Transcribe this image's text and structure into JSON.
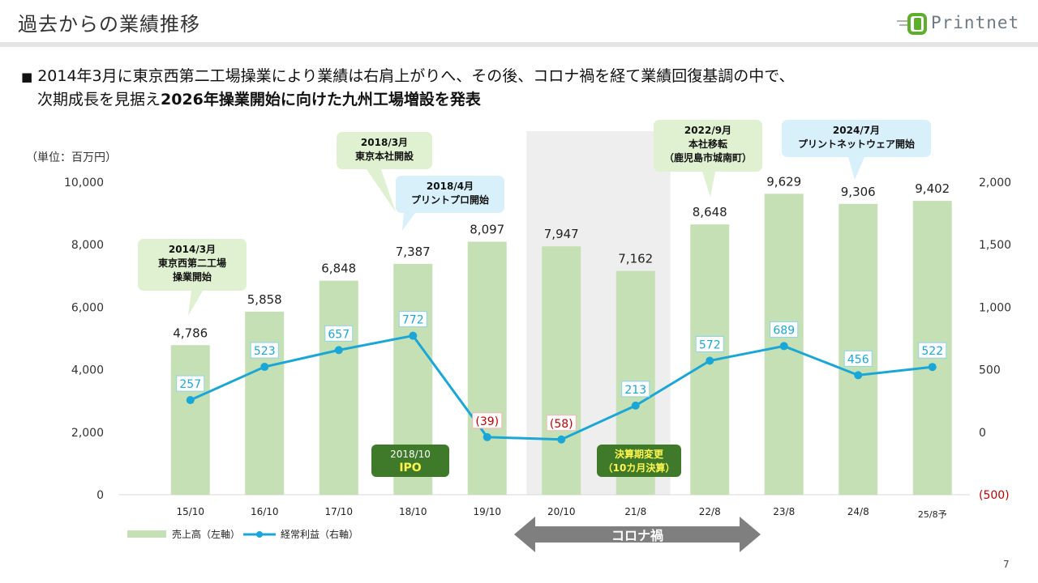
{
  "header": {
    "title": "過去からの業績推移",
    "logo_text": "Printnet",
    "logo_initial": "P"
  },
  "headline": {
    "bullet": "■",
    "line1": "2014年3月に東京西第二工場操業により業績は右肩上がりへ、その後、コロナ禍を経て業績回復基調の中で、",
    "line2_plain": "次期成長を見据え",
    "line2_bold": "2026年操業開始に向けた九州工場増設を発表"
  },
  "unit_label": "（単位：百万円）",
  "callouts": [
    {
      "lines": [
        "2014/3月",
        "東京西第二工場",
        "操業開始"
      ],
      "color": "green"
    },
    {
      "lines": [
        "2018/3月",
        "東京本社開設"
      ],
      "color": "green"
    },
    {
      "lines": [
        "2018/4月",
        "プリントプロ開始"
      ],
      "color": "blue"
    },
    {
      "lines": [
        "2022/9月",
        "本社移転",
        "（鹿児島市城南町）"
      ],
      "color": "green"
    },
    {
      "lines": [
        "2024/7月",
        "プリントネットウェア開始"
      ],
      "color": "blue"
    }
  ],
  "badges": {
    "ipo_date": "2018/10",
    "ipo_label": "IPO",
    "fy_change_line1": "決算期変更",
    "fy_change_line2": "（10カ月決算）"
  },
  "covid_label": "コロナ禍",
  "page_number": "7",
  "colors": {
    "bar": "#c5e0b4",
    "line": "#1aa7d8",
    "negative": "#c00000",
    "callout_green": "#dff1d0",
    "callout_blue": "#d8f0fa",
    "badge_green": "#3f7a2a",
    "covid_band": "#eeeeee",
    "covid_arrow": "#7f7f7f"
  },
  "chart_data": {
    "type": "bar",
    "categories": [
      "15/10",
      "16/10",
      "17/10",
      "18/10",
      "19/10",
      "20/10",
      "21/8",
      "22/8",
      "23/8",
      "24/8",
      "25/8予"
    ],
    "series": [
      {
        "name": "売上高（左軸）",
        "type": "bar",
        "axis": "left",
        "values": [
          4786,
          5858,
          6848,
          7387,
          8097,
          7947,
          7162,
          8648,
          9629,
          9306,
          9402
        ],
        "labels": [
          "4,786",
          "5,858",
          "6,848",
          "7,387",
          "8,097",
          "7,947",
          "7,162",
          "8,648",
          "9,629",
          "9,306",
          "9,402"
        ]
      },
      {
        "name": "経常利益（右軸）",
        "type": "line",
        "axis": "right",
        "values": [
          257,
          523,
          657,
          772,
          -39,
          -58,
          213,
          572,
          689,
          456,
          522
        ],
        "labels": [
          "257",
          "523",
          "657",
          "772",
          "(39)",
          "(58)",
          "213",
          "572",
          "689",
          "456",
          "522"
        ]
      }
    ],
    "left_axis": {
      "min": 0,
      "max": 10000,
      "ticks": [
        "0",
        "2,000",
        "4,000",
        "6,000",
        "8,000",
        "10,000"
      ]
    },
    "right_axis": {
      "min": -500,
      "max": 2000,
      "ticks": [
        "(500)",
        "0",
        "500",
        "1,000",
        "1,500",
        "2,000"
      ]
    },
    "legend": [
      "売上高（左軸）",
      "経常利益（右軸）"
    ],
    "legend_position": "bottom-left",
    "shaded_period": [
      "20/10",
      "21/8"
    ]
  }
}
